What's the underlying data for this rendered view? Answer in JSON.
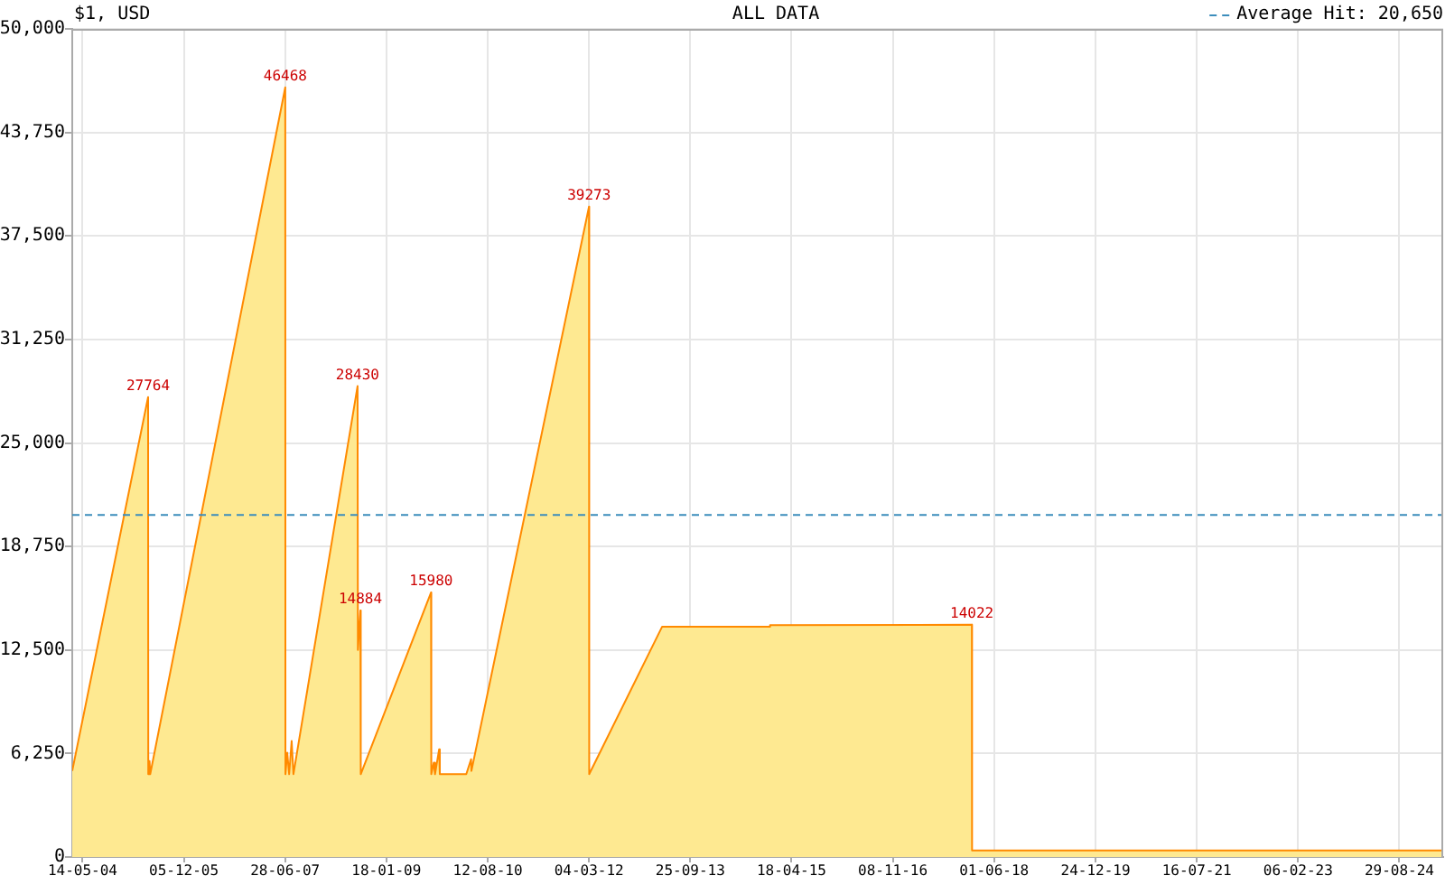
{
  "chart_data": {
    "type": "area",
    "title": "$1, USD",
    "subtitle": "ALL DATA",
    "x": [
      "2004-03-17",
      "2005-05-18",
      "2005-05-19",
      "2005-05-26",
      "2005-05-30",
      "2007-06-29",
      "2007-06-30",
      "2007-07-10",
      "2007-07-21",
      "2007-08-04",
      "2007-08-14",
      "2008-08-09",
      "2008-08-11",
      "2008-08-25",
      "2008-08-27",
      "2009-09-27",
      "2009-09-28",
      "2009-10-12",
      "2009-10-19",
      "2009-11-11",
      "2009-11-15",
      "2010-04-13",
      "2010-05-10",
      "2010-05-12",
      "2012-03-04",
      "2012-03-05",
      "2013-04-19",
      "2014-12-17",
      "2014-12-18",
      "2018-01-27",
      "2018-01-28",
      "2025-05-03"
    ],
    "series": [
      {
        "color": "#fee991",
        "values": [
          5200,
          27764,
          5000,
          5800,
          5000,
          46468,
          5000,
          6300,
          5000,
          7000,
          5000,
          28430,
          12500,
          14884,
          5000,
          15980,
          5000,
          5700,
          5000,
          6500,
          5000,
          5000,
          5900,
          5200,
          39273,
          5000,
          13900,
          13900,
          14000,
          14022,
          400,
          400
        ],
        "value_labels": [
          null,
          "27764",
          null,
          null,
          null,
          "46468",
          null,
          null,
          null,
          null,
          null,
          "28430",
          null,
          "14884",
          null,
          "15980",
          null,
          null,
          null,
          null,
          null,
          null,
          null,
          null,
          "39273",
          null,
          null,
          null,
          null,
          "14022",
          null,
          null
        ]
      }
    ],
    "xlim": [
      "2004-03-17",
      "2025-05-03"
    ],
    "xticks": [
      {
        "value": "2004-05-14",
        "label": "14-05-04"
      },
      {
        "value": "2005-12-05",
        "label": "05-12-05"
      },
      {
        "value": "2007-06-28",
        "label": "28-06-07"
      },
      {
        "value": "2009-01-18",
        "label": "18-01-09"
      },
      {
        "value": "2010-08-12",
        "label": "12-08-10"
      },
      {
        "value": "2012-03-04",
        "label": "04-03-12"
      },
      {
        "value": "2013-09-25",
        "label": "25-09-13"
      },
      {
        "value": "2015-04-18",
        "label": "18-04-15"
      },
      {
        "value": "2016-11-08",
        "label": "08-11-16"
      },
      {
        "value": "2018-06-01",
        "label": "01-06-18"
      },
      {
        "value": "2019-12-24",
        "label": "24-12-19"
      },
      {
        "value": "2021-07-16",
        "label": "16-07-21"
      },
      {
        "value": "2023-02-06",
        "label": "06-02-23"
      },
      {
        "value": "2024-08-29",
        "label": "29-08-24"
      }
    ],
    "ylim": [
      0,
      50000
    ],
    "yticks": [
      0,
      {
        "value": 6250,
        "label": "6,250"
      },
      {
        "value": 12500,
        "label": "12,500"
      },
      {
        "value": 18750,
        "label": "18,750"
      },
      {
        "value": 25000,
        "label": "25,000"
      },
      {
        "value": 31250,
        "label": "31,250"
      },
      {
        "value": 37500,
        "label": "37,500"
      },
      {
        "value": 43750,
        "label": "43,750"
      },
      {
        "value": 50000,
        "label": "50,000"
      }
    ],
    "grid": true,
    "ref_lines": [
      {
        "axis": "y",
        "value": 20650,
        "label": "Average Hit: 20,650",
        "color": "#3c8dbc",
        "line_style": "dashed"
      }
    ]
  }
}
